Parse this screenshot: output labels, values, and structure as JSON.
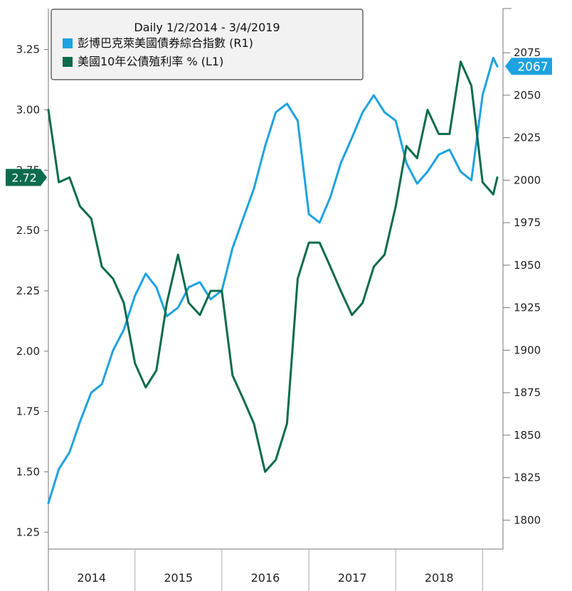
{
  "chart_data": {
    "type": "line",
    "title": "Daily 1/2/2014 - 3/4/2019",
    "x_range": [
      "2014-01-02",
      "2019-03-04"
    ],
    "x_tick_labels": [
      "2014",
      "2015",
      "2016",
      "2017",
      "2018"
    ],
    "y_left": {
      "ylim": [
        1.18,
        3.42
      ],
      "ticks": [
        1.25,
        1.5,
        1.75,
        2.0,
        2.25,
        2.5,
        2.75,
        3.0,
        3.25
      ],
      "tick_labels": [
        "1.25",
        "1.50",
        "1.75",
        "2.00",
        "2.25",
        "2.50",
        "2.75",
        "3.00",
        "3.25"
      ]
    },
    "y_right": {
      "ylim": [
        1783,
        2101
      ],
      "ticks": [
        1800,
        1825,
        1850,
        1875,
        1900,
        1925,
        1950,
        1975,
        2000,
        2025,
        2050,
        2075
      ],
      "tick_labels": [
        "1800",
        "1825",
        "1850",
        "1875",
        "1900",
        "1925",
        "1950",
        "1975",
        "2000",
        "2025",
        "2050",
        "2075"
      ]
    },
    "series": [
      {
        "name": "彭博巴克萊美國債券綜合指數 (R1)",
        "axis": "right",
        "color": "#1ea2e0",
        "last_value_label": "2067",
        "x": [
          "2014-01-02",
          "2014-02-15",
          "2014-04-01",
          "2014-05-15",
          "2014-07-01",
          "2014-08-15",
          "2014-10-01",
          "2014-11-15",
          "2015-01-01",
          "2015-02-15",
          "2015-04-01",
          "2015-05-15",
          "2015-07-01",
          "2015-08-15",
          "2015-10-01",
          "2015-11-15",
          "2016-01-01",
          "2016-02-15",
          "2016-04-01",
          "2016-05-15",
          "2016-07-01",
          "2016-08-15",
          "2016-10-01",
          "2016-11-15",
          "2017-01-01",
          "2017-02-15",
          "2017-04-01",
          "2017-05-15",
          "2017-07-01",
          "2017-08-15",
          "2017-10-01",
          "2017-11-15",
          "2018-01-01",
          "2018-02-15",
          "2018-04-01",
          "2018-05-15",
          "2018-07-01",
          "2018-08-15",
          "2018-10-01",
          "2018-11-15",
          "2019-01-01",
          "2019-02-15",
          "2019-03-04"
        ],
        "values": [
          1810,
          1830,
          1840,
          1858,
          1875,
          1880,
          1900,
          1912,
          1932,
          1945,
          1937,
          1920,
          1925,
          1937,
          1940,
          1930,
          1935,
          1960,
          1978,
          1995,
          2020,
          2040,
          2045,
          2035,
          1980,
          1975,
          1990,
          2010,
          2025,
          2040,
          2050,
          2040,
          2035,
          2010,
          1998,
          2005,
          2015,
          2018,
          2005,
          2000,
          2050,
          2072,
          2067
        ]
      },
      {
        "name": "美國10年公債殖利率 % (L1)",
        "axis": "left",
        "color": "#0b6b4e",
        "last_value_label": "2.72",
        "x": [
          "2014-01-02",
          "2014-02-15",
          "2014-04-01",
          "2014-05-15",
          "2014-07-01",
          "2014-08-15",
          "2014-10-01",
          "2014-11-15",
          "2015-01-01",
          "2015-02-15",
          "2015-04-01",
          "2015-05-15",
          "2015-07-01",
          "2015-08-15",
          "2015-10-01",
          "2015-11-15",
          "2016-01-01",
          "2016-02-15",
          "2016-04-01",
          "2016-05-15",
          "2016-07-01",
          "2016-08-15",
          "2016-10-01",
          "2016-11-15",
          "2017-01-01",
          "2017-02-15",
          "2017-04-01",
          "2017-05-15",
          "2017-07-01",
          "2017-08-15",
          "2017-10-01",
          "2017-11-15",
          "2018-01-01",
          "2018-02-15",
          "2018-04-01",
          "2018-05-15",
          "2018-07-01",
          "2018-08-15",
          "2018-10-01",
          "2018-11-15",
          "2019-01-01",
          "2019-02-15",
          "2019-03-04"
        ],
        "values": [
          3.0,
          2.7,
          2.72,
          2.6,
          2.55,
          2.35,
          2.3,
          2.2,
          1.95,
          1.85,
          1.92,
          2.2,
          2.4,
          2.2,
          2.15,
          2.25,
          2.25,
          1.9,
          1.8,
          1.7,
          1.5,
          1.55,
          1.7,
          2.3,
          2.45,
          2.45,
          2.35,
          2.25,
          2.15,
          2.2,
          2.35,
          2.4,
          2.6,
          2.85,
          2.8,
          3.0,
          2.9,
          2.9,
          3.2,
          3.1,
          2.7,
          2.65,
          2.72
        ]
      }
    ]
  }
}
